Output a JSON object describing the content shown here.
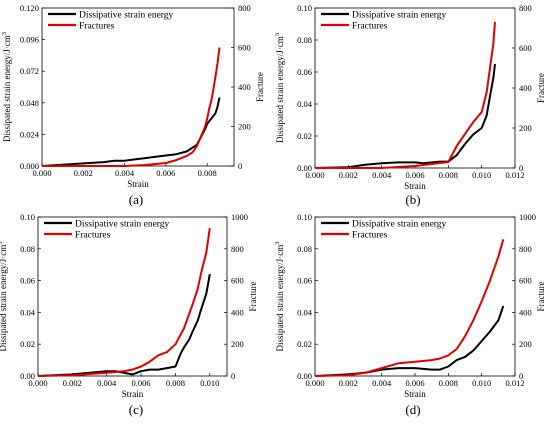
{
  "chart_data": [
    {
      "type": "line",
      "panel_label": "(a)",
      "xlabel": "Strain",
      "ylabel": "Dissipated strain energy/J·cm",
      "ylabel_sup": "3",
      "y2label": "Fracture",
      "xlim": [
        0.0,
        0.0093
      ],
      "ylim": [
        0.0,
        0.12
      ],
      "y2lim": [
        0,
        800
      ],
      "xticks": [
        "0.000",
        "0.002",
        "0.004",
        "0.006",
        "0.008"
      ],
      "yticks": [
        "0.000",
        "0.024",
        "0.048",
        "0.072",
        "0.096",
        "0.120"
      ],
      "y2ticks": [
        "0",
        "200",
        "400",
        "600",
        "800"
      ],
      "legend_position": "top-left",
      "series": [
        {
          "name": "Dissipative strain energy",
          "color": "#000000",
          "axis": "left",
          "x": [
            0.0,
            0.001,
            0.002,
            0.003,
            0.0035,
            0.004,
            0.0045,
            0.005,
            0.0055,
            0.006,
            0.0065,
            0.007,
            0.0072,
            0.0075,
            0.0077,
            0.0079,
            0.008,
            0.0082,
            0.0084,
            0.0085,
            0.0086
          ],
          "y": [
            0.0,
            0.001,
            0.002,
            0.003,
            0.004,
            0.004,
            0.005,
            0.006,
            0.007,
            0.008,
            0.009,
            0.011,
            0.013,
            0.016,
            0.022,
            0.028,
            0.032,
            0.036,
            0.04,
            0.045,
            0.052
          ]
        },
        {
          "name": "Fractures",
          "color": "#e00000",
          "axis": "right",
          "x": [
            0.0,
            0.002,
            0.004,
            0.005,
            0.006,
            0.0065,
            0.007,
            0.0073,
            0.0075,
            0.0077,
            0.0079,
            0.008,
            0.0081,
            0.0082,
            0.0083,
            0.0084,
            0.0085,
            0.0086
          ],
          "y": [
            0,
            0,
            0,
            5,
            15,
            30,
            50,
            70,
            100,
            150,
            200,
            240,
            290,
            330,
            390,
            450,
            520,
            600
          ]
        }
      ]
    },
    {
      "type": "line",
      "panel_label": "(b)",
      "xlabel": "Strain",
      "ylabel": "Dissipated strain energy/J·cm",
      "ylabel_sup": "3",
      "y2label": "Fracture",
      "xlim": [
        0.0,
        0.012
      ],
      "ylim": [
        0.0,
        0.1
      ],
      "y2lim": [
        0,
        800
      ],
      "xticks": [
        "0.000",
        "0.002",
        "0.004",
        "0.006",
        "0.008",
        "0.010",
        "0.012"
      ],
      "yticks": [
        "0.00",
        "0.02",
        "0.04",
        "0.06",
        "0.08",
        "0.10"
      ],
      "y2ticks": [
        "0",
        "200",
        "400",
        "600",
        "800"
      ],
      "legend_position": "top-left",
      "series": [
        {
          "name": "Dissipative strain energy",
          "color": "#000000",
          "axis": "left",
          "x": [
            0.0,
            0.002,
            0.003,
            0.004,
            0.005,
            0.006,
            0.0065,
            0.007,
            0.0075,
            0.008,
            0.0085,
            0.009,
            0.0095,
            0.01,
            0.0103,
            0.0105,
            0.0107,
            0.0108
          ],
          "y": [
            0.0,
            0.0005,
            0.002,
            0.003,
            0.0035,
            0.0035,
            0.003,
            0.0035,
            0.004,
            0.004,
            0.008,
            0.015,
            0.021,
            0.025,
            0.033,
            0.045,
            0.056,
            0.065
          ]
        },
        {
          "name": "Fractures",
          "color": "#e00000",
          "axis": "right",
          "x": [
            0.0,
            0.004,
            0.006,
            0.007,
            0.0075,
            0.008,
            0.0085,
            0.009,
            0.0095,
            0.01,
            0.0103,
            0.0105,
            0.0107,
            0.0108
          ],
          "y": [
            0,
            0,
            10,
            20,
            25,
            30,
            110,
            170,
            230,
            280,
            380,
            500,
            620,
            730
          ]
        }
      ]
    },
    {
      "type": "line",
      "panel_label": "(c)",
      "xlabel": "Strain",
      "ylabel": "Dissipated strain energy/J·cm",
      "ylabel_sup": "3",
      "y2label": "Fracture",
      "xlim": [
        0.0,
        0.011
      ],
      "ylim": [
        0.0,
        0.1
      ],
      "y2lim": [
        0,
        1000
      ],
      "xticks": [
        "0.000",
        "0.002",
        "0.004",
        "0.006",
        "0.008",
        "0.010"
      ],
      "yticks": [
        "0.00",
        "0.02",
        "0.04",
        "0.06",
        "0.08",
        "0.10"
      ],
      "y2ticks": [
        "0",
        "200",
        "400",
        "600",
        "800",
        "1000"
      ],
      "legend_position": "top-left",
      "series": [
        {
          "name": "Dissipative strain energy",
          "color": "#000000",
          "axis": "left",
          "x": [
            0.0,
            0.002,
            0.003,
            0.004,
            0.0045,
            0.005,
            0.0055,
            0.006,
            0.0065,
            0.007,
            0.0075,
            0.008,
            0.0083,
            0.0085,
            0.0088,
            0.009,
            0.0093,
            0.0095,
            0.0098,
            0.01
          ],
          "y": [
            0.0,
            0.001,
            0.002,
            0.003,
            0.003,
            0.002,
            0.001,
            0.003,
            0.004,
            0.004,
            0.005,
            0.006,
            0.014,
            0.018,
            0.023,
            0.028,
            0.035,
            0.042,
            0.052,
            0.064
          ]
        },
        {
          "name": "Fractures",
          "color": "#e00000",
          "axis": "right",
          "x": [
            0.0,
            0.002,
            0.004,
            0.005,
            0.0055,
            0.006,
            0.0065,
            0.007,
            0.0075,
            0.008,
            0.0085,
            0.009,
            0.0093,
            0.0095,
            0.0098,
            0.01
          ],
          "y": [
            0,
            5,
            20,
            30,
            40,
            60,
            90,
            130,
            150,
            200,
            300,
            450,
            550,
            650,
            780,
            930
          ]
        }
      ]
    },
    {
      "type": "line",
      "panel_label": "(d)",
      "xlabel": "Strain",
      "ylabel": "Dissipated strain energy/J·cm",
      "ylabel_sup": "3",
      "y2label": "Fracture",
      "xlim": [
        0.0,
        0.012
      ],
      "ylim": [
        0.0,
        0.1
      ],
      "y2lim": [
        0,
        1000
      ],
      "xticks": [
        "0.000",
        "0.002",
        "0.004",
        "0.006",
        "0.008",
        "0.010",
        "0.012"
      ],
      "yticks": [
        "0.00",
        "0.02",
        "0.04",
        "0.06",
        "0.08",
        "0.10"
      ],
      "y2ticks": [
        "0",
        "200",
        "400",
        "600",
        "800",
        "1000"
      ],
      "legend_position": "top-left",
      "series": [
        {
          "name": "Dissipative strain energy",
          "color": "#000000",
          "axis": "left",
          "x": [
            0.0,
            0.002,
            0.003,
            0.004,
            0.005,
            0.006,
            0.007,
            0.0075,
            0.008,
            0.0085,
            0.009,
            0.0095,
            0.01,
            0.0105,
            0.011,
            0.0113
          ],
          "y": [
            0.0,
            0.001,
            0.002,
            0.004,
            0.005,
            0.005,
            0.004,
            0.004,
            0.006,
            0.01,
            0.012,
            0.016,
            0.022,
            0.028,
            0.035,
            0.044
          ]
        },
        {
          "name": "Fractures",
          "color": "#e00000",
          "axis": "right",
          "x": [
            0.0,
            0.002,
            0.003,
            0.004,
            0.005,
            0.006,
            0.007,
            0.0075,
            0.008,
            0.0085,
            0.009,
            0.0095,
            0.01,
            0.0105,
            0.011,
            0.0113
          ],
          "y": [
            0,
            5,
            20,
            50,
            80,
            90,
            100,
            110,
            130,
            170,
            250,
            350,
            470,
            600,
            750,
            860
          ]
        }
      ]
    }
  ]
}
